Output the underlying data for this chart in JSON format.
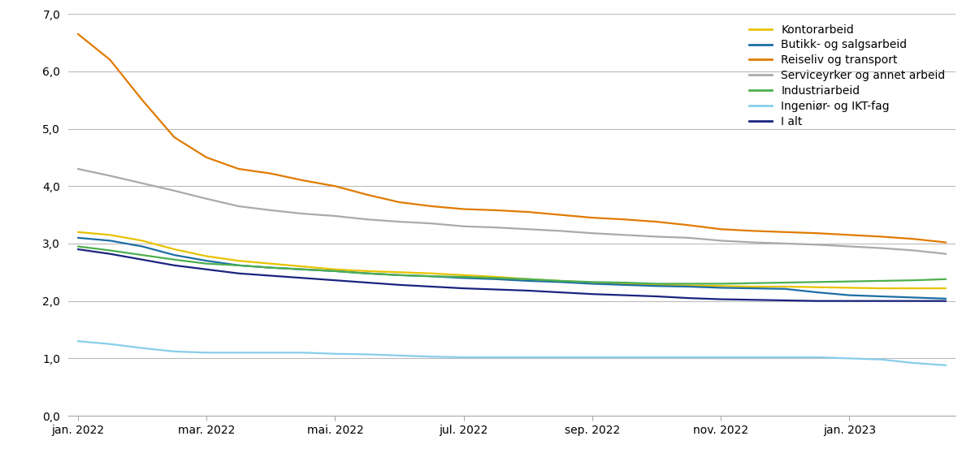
{
  "x_tick_labels": [
    "jan. 2022",
    "mar. 2022",
    "mai. 2022",
    "jul. 2022",
    "sep. 2022",
    "nov. 2022",
    "jan. 2023"
  ],
  "ylim": [
    0.0,
    7.0
  ],
  "yticks": [
    0.0,
    1.0,
    2.0,
    3.0,
    4.0,
    5.0,
    6.0,
    7.0
  ],
  "ytick_labels": [
    "0,0",
    "1,0",
    "2,0",
    "3,0",
    "4,0",
    "5,0",
    "6,0",
    "7,0"
  ],
  "series": {
    "Kontorarbeid": {
      "color": "#E8C200",
      "data": [
        3.2,
        3.15,
        3.05,
        2.9,
        2.78,
        2.7,
        2.65,
        2.6,
        2.55,
        2.52,
        2.5,
        2.48,
        2.45,
        2.42,
        2.38,
        2.35,
        2.32,
        2.3,
        2.28,
        2.27,
        2.26,
        2.25,
        2.25,
        2.24,
        2.23,
        2.22,
        2.22,
        2.22
      ]
    },
    "Butikk- og salgsarbeid": {
      "color": "#1C6EA4",
      "data": [
        3.1,
        3.05,
        2.95,
        2.8,
        2.7,
        2.62,
        2.58,
        2.55,
        2.52,
        2.48,
        2.45,
        2.43,
        2.4,
        2.38,
        2.35,
        2.33,
        2.3,
        2.28,
        2.26,
        2.25,
        2.23,
        2.22,
        2.21,
        2.15,
        2.1,
        2.08,
        2.06,
        2.04
      ]
    },
    "Reiseliv og transport": {
      "color": "#E07B00",
      "data": [
        6.65,
        6.2,
        5.5,
        4.85,
        4.5,
        4.3,
        4.22,
        4.1,
        4.0,
        3.85,
        3.72,
        3.65,
        3.6,
        3.58,
        3.55,
        3.5,
        3.45,
        3.42,
        3.38,
        3.32,
        3.25,
        3.22,
        3.2,
        3.18,
        3.15,
        3.12,
        3.08,
        3.02
      ]
    },
    "Serviceyrker og annet arbeid": {
      "color": "#AAAAAA",
      "data": [
        4.3,
        4.18,
        4.05,
        3.92,
        3.78,
        3.65,
        3.58,
        3.52,
        3.48,
        3.42,
        3.38,
        3.35,
        3.3,
        3.28,
        3.25,
        3.22,
        3.18,
        3.15,
        3.12,
        3.1,
        3.05,
        3.02,
        3.0,
        2.98,
        2.95,
        2.92,
        2.88,
        2.82
      ]
    },
    "Industriarbeid": {
      "color": "#4CAF50",
      "data": [
        2.95,
        2.88,
        2.8,
        2.72,
        2.65,
        2.62,
        2.58,
        2.55,
        2.52,
        2.48,
        2.45,
        2.43,
        2.42,
        2.4,
        2.38,
        2.35,
        2.33,
        2.32,
        2.3,
        2.3,
        2.3,
        2.31,
        2.32,
        2.33,
        2.34,
        2.35,
        2.36,
        2.38
      ]
    },
    "Ingeniør- og IKT-fag": {
      "color": "#87CEEB",
      "data": [
        1.3,
        1.25,
        1.18,
        1.12,
        1.1,
        1.1,
        1.1,
        1.1,
        1.08,
        1.07,
        1.05,
        1.03,
        1.02,
        1.02,
        1.02,
        1.02,
        1.02,
        1.02,
        1.02,
        1.02,
        1.02,
        1.02,
        1.02,
        1.02,
        1.0,
        0.98,
        0.92,
        0.88
      ]
    },
    "I alt": {
      "color": "#1A237E",
      "data": [
        2.9,
        2.82,
        2.72,
        2.62,
        2.55,
        2.48,
        2.44,
        2.4,
        2.36,
        2.32,
        2.28,
        2.25,
        2.22,
        2.2,
        2.18,
        2.15,
        2.12,
        2.1,
        2.08,
        2.05,
        2.03,
        2.02,
        2.01,
        2.0,
        2.0,
        2.0,
        2.0,
        2.0
      ]
    }
  },
  "n_points": 28,
  "x_tick_positions": [
    0,
    4,
    8,
    12,
    16,
    20,
    24
  ],
  "background_color": "#FFFFFF",
  "grid_color": "#BBBBBB",
  "legend_order": [
    "Kontorarbeid",
    "Butikk- og salgsarbeid",
    "Reiseliv og transport",
    "Serviceyrker og annet arbeid",
    "Industriarbeid",
    "Ingeniør- og IKT-fag",
    "I alt"
  ]
}
